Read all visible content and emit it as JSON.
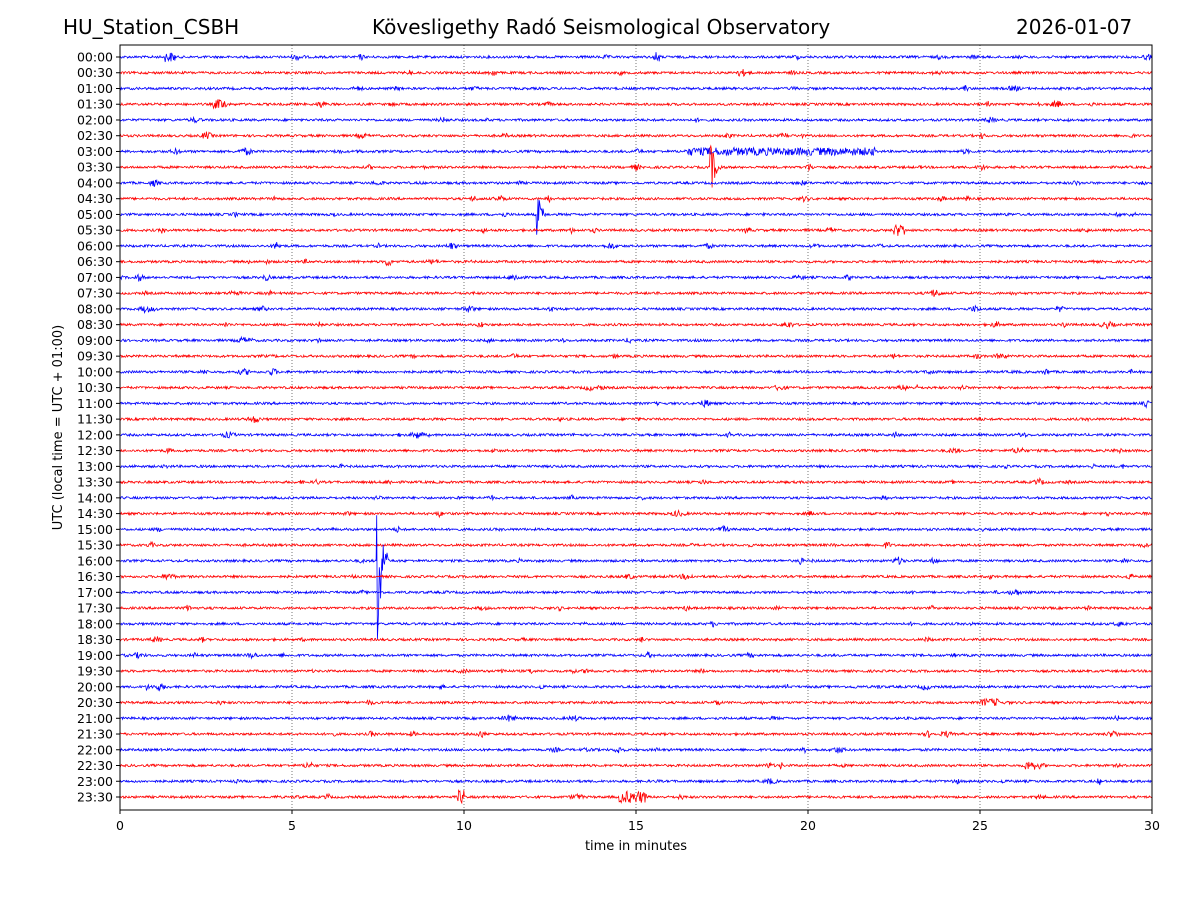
{
  "header": {
    "station": "HU_Station_CSBH",
    "observatory": "Kövesligethy Radó Seismological Observatory",
    "date": "2026-01-07"
  },
  "chart_data": {
    "type": "line",
    "title": "Kövesligethy Radó Seismological Observatory",
    "xlabel": "time in minutes",
    "ylabel": "UTC (local time = UTC + 01:00)",
    "xlim": [
      0,
      30
    ],
    "xticks": [
      0,
      5,
      10,
      15,
      20,
      25,
      30
    ],
    "grid": "vertical dotted at x ticks",
    "row_labels": [
      "00:00",
      "00:30",
      "01:00",
      "01:30",
      "02:00",
      "02:30",
      "03:00",
      "03:30",
      "04:00",
      "04:30",
      "05:00",
      "05:30",
      "06:00",
      "06:30",
      "07:00",
      "07:30",
      "08:00",
      "08:30",
      "09:00",
      "09:30",
      "10:00",
      "10:30",
      "11:00",
      "11:30",
      "12:00",
      "12:30",
      "13:00",
      "13:30",
      "14:00",
      "14:30",
      "15:00",
      "15:30",
      "16:00",
      "16:30",
      "17:00",
      "17:30",
      "18:00",
      "18:30",
      "19:00",
      "19:30",
      "20:00",
      "20:30",
      "21:00",
      "21:30",
      "22:00",
      "22:30",
      "23:00",
      "23:30"
    ],
    "colors": [
      "#0000ff",
      "#ff0000"
    ],
    "events": [
      {
        "row": "03:00",
        "start_min": 16.5,
        "end_min": 22.0,
        "amplitude": 4
      },
      {
        "row": "03:30",
        "start_min": 17.15,
        "end_min": 17.6,
        "amplitude": 35
      },
      {
        "row": "05:00",
        "start_min": 12.1,
        "end_min": 12.4,
        "amplitude": 30
      },
      {
        "row": "16:00",
        "start_min": 7.45,
        "end_min": 7.8,
        "amplitude": 120
      },
      {
        "row": "01:30",
        "start_min": 2.7,
        "end_min": 3.1,
        "amplitude": 5
      },
      {
        "row": "05:30",
        "start_min": 22.5,
        "end_min": 22.8,
        "amplitude": 6
      },
      {
        "row": "06:30",
        "start_min": 7.7,
        "end_min": 7.9,
        "amplitude": 5
      },
      {
        "row": "23:30",
        "start_min": 14.5,
        "end_min": 15.3,
        "amplitude": 6
      },
      {
        "row": "23:30",
        "start_min": 9.8,
        "end_min": 10.0,
        "amplitude": 7
      },
      {
        "row": "22:30",
        "start_min": 26.3,
        "end_min": 26.6,
        "amplitude": 5
      },
      {
        "row": "20:30",
        "start_min": 25.0,
        "end_min": 25.6,
        "amplitude": 4
      },
      {
        "row": "00:00",
        "start_min": 1.3,
        "end_min": 1.6,
        "amplitude": 5
      },
      {
        "row": "00:00",
        "start_min": 15.5,
        "end_min": 15.7,
        "amplitude": 5
      }
    ]
  }
}
